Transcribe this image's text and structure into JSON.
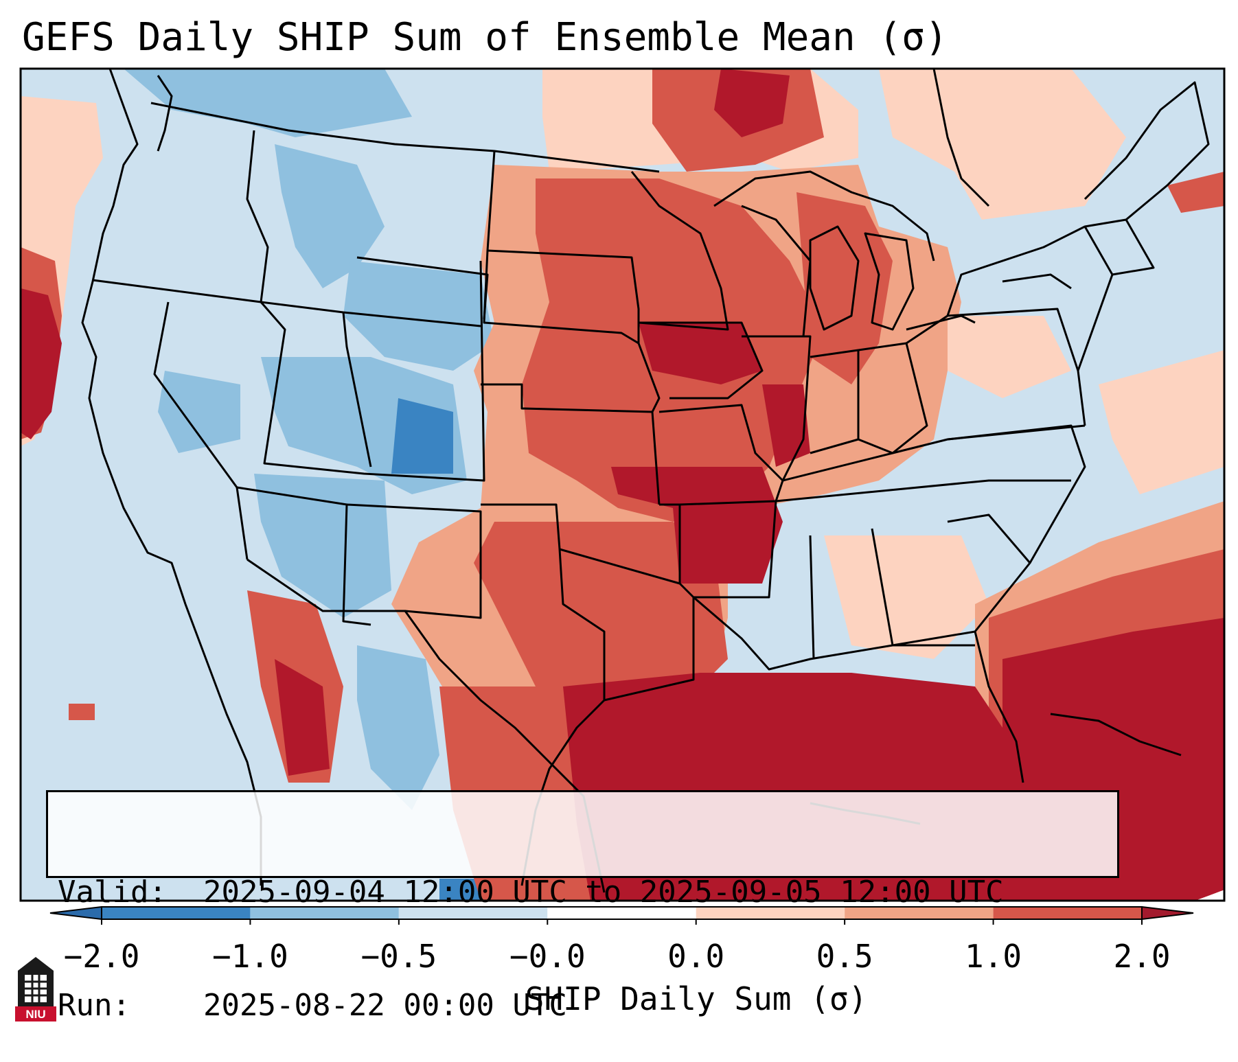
{
  "title": "GEFS Daily SHIP Sum of Ensemble Mean (σ)",
  "info": {
    "valid_label": "Valid:",
    "valid_value": "2025-09-04 12:00 UTC to 2025-09-05 12:00 UTC",
    "run_label": "Run:",
    "run_value": "2025-08-22 00:00 UTC"
  },
  "colorbar": {
    "label": "SHIP Daily Sum (σ)",
    "ticks": [
      "−2.0",
      "−1.0",
      "−0.5",
      "−0.0",
      "0.0",
      "0.5",
      "1.0",
      "2.0"
    ],
    "colors": [
      "#3a84c2",
      "#8fc0df",
      "#cde1ef",
      "#ffffff",
      "#fdd3c0",
      "#f0a486",
      "#d6574a",
      "#b1182b"
    ],
    "extend_low_color": "#2b6bab",
    "extend_high_color": "#a31a2d"
  },
  "logo": {
    "text": "NIU",
    "color": "#c8102e",
    "icon": "niu-building-icon"
  },
  "map": {
    "region": "Contiguous United States, southern Canada, northern Mexico, Gulf of Mexico, Caribbean",
    "colors": {
      "strong_negative": "#3a84c2",
      "moderate_negative": "#8fc0df",
      "weak_negative": "#cde1ef",
      "weak_positive": "#fdd3c0",
      "moderate_positive": "#f0a486",
      "strong_positive": "#d6574a",
      "very_strong_positive": "#b1182b"
    }
  }
}
